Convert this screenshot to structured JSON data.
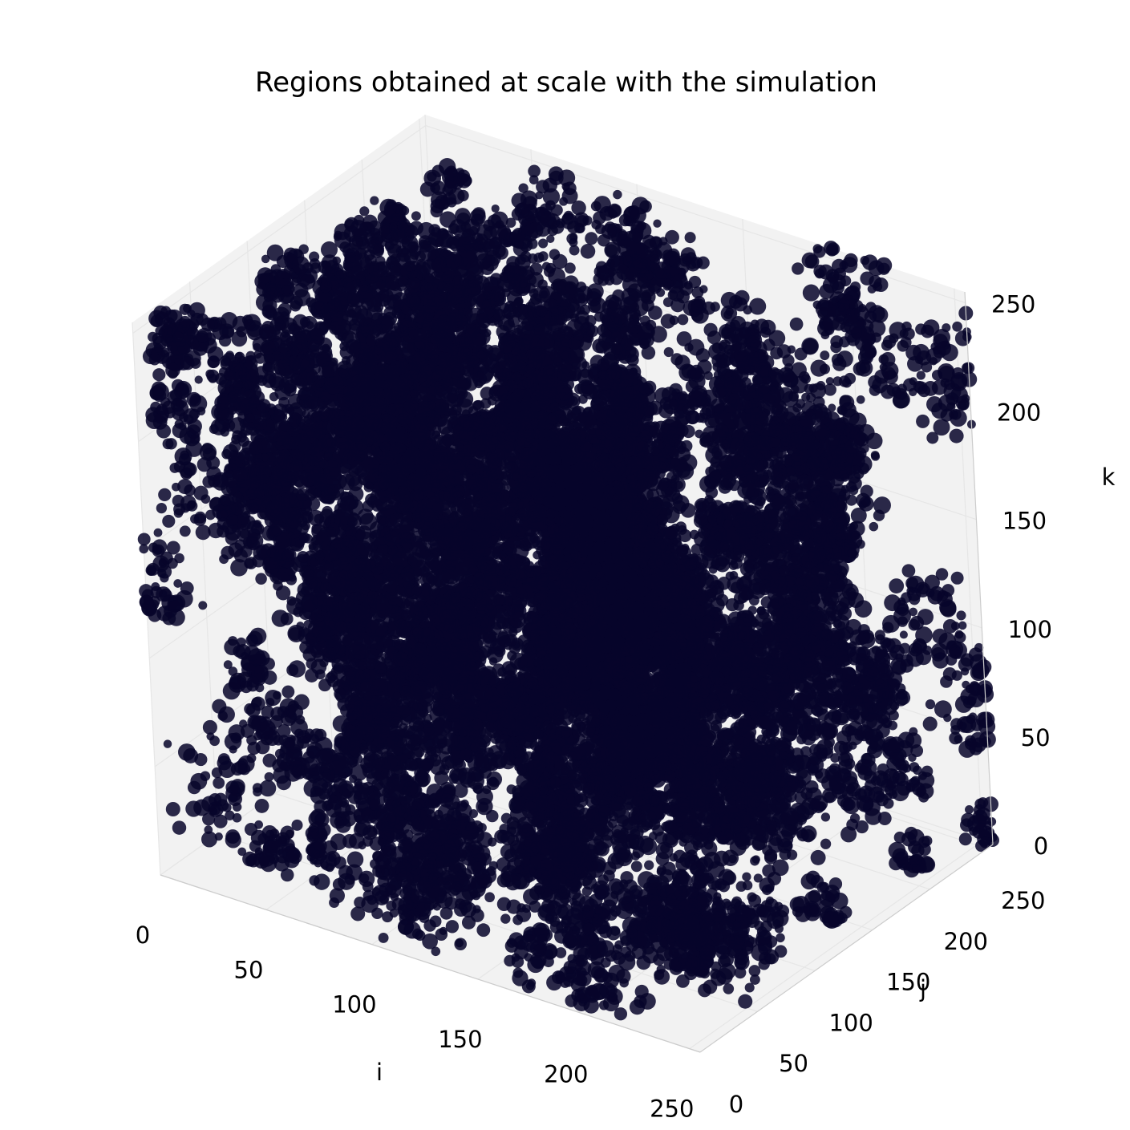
{
  "chart_data": {
    "type": "scatter",
    "title": "Regions obtained at scale with the simulation",
    "xlabel": "i",
    "ylabel": "j",
    "zlabel": "k",
    "xlim": [
      0,
      255
    ],
    "ylim": [
      0,
      255
    ],
    "zlim": [
      0,
      255
    ],
    "xticks": [
      0,
      50,
      100,
      150,
      200,
      250
    ],
    "yticks": [
      0,
      50,
      100,
      150,
      200,
      250
    ],
    "zticks": [
      0,
      50,
      100,
      150,
      200,
      250
    ],
    "grid": true,
    "marker_color": "#07052a",
    "pane_color": "#f2f2f2",
    "description": "3D voxel scatter of simulated regions filling the 256x256x256 cube"
  }
}
